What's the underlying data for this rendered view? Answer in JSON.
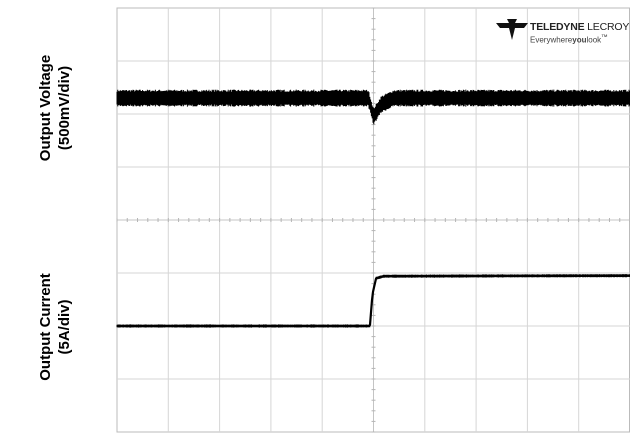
{
  "chart_data": {
    "type": "line",
    "title": "",
    "grid": true,
    "divisions": {
      "x": 10,
      "y": 8
    },
    "channels": [
      {
        "name": "Output Voltage",
        "ylabel_line1": "Output Voltage",
        "ylabel_line2": "(500mV/div)",
        "scale": "500mV/div",
        "baseline_div": 2.3,
        "noise_band_div": 0.32,
        "trace_divisions": [
          [
            0,
            2.3
          ],
          [
            4.9,
            2.3
          ],
          [
            5.0,
            1.95
          ],
          [
            5.15,
            2.18
          ],
          [
            5.4,
            2.3
          ],
          [
            10,
            2.3
          ]
        ]
      },
      {
        "name": "Output Current",
        "ylabel_line1": "Output Current",
        "ylabel_line2": "(5A/div)",
        "scale": "5A/div",
        "trace_divisions": [
          [
            0,
            -2.0
          ],
          [
            4.93,
            -2.0
          ],
          [
            4.98,
            -1.4
          ],
          [
            5.05,
            -1.1
          ],
          [
            5.2,
            -1.06
          ],
          [
            10,
            -1.05
          ]
        ],
        "noise_band_div": 0.06
      }
    ],
    "grid_layout": {
      "center_x_div": 5,
      "center_y_div": 0
    }
  },
  "logo": {
    "brand_bold": "TELEDYNE",
    "brand_light": "LECROY",
    "tagline_pre": "Everywhere",
    "tagline_bold": "you",
    "tagline_post": "look",
    "tagline_mark": "™"
  }
}
